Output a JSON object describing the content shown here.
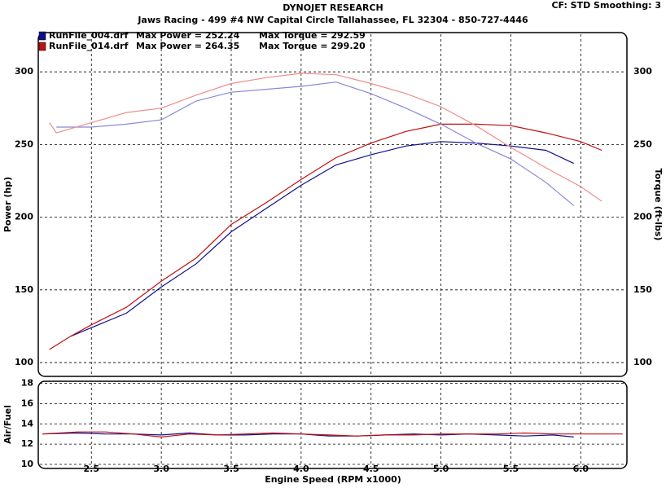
{
  "header": {
    "settings": "CF: STD  Smoothing: 3",
    "title": "DYNOJET RESEARCH",
    "subtitle": "Jaws Racing - 499 #4 NW Capital Circle Tallahassee, FL 32304 - 850-727-4446"
  },
  "chart_data": [
    {
      "type": "line",
      "ylabel": "Power (hp)",
      "y2label": "Torque (ft-lbs)",
      "grid": true,
      "ylim": [
        90.5,
        327
      ],
      "yticks": [
        100,
        150,
        200,
        250,
        300
      ],
      "y2lim": [
        90.5,
        327
      ],
      "y2ticks": [
        100,
        150,
        200,
        250,
        300
      ],
      "legend": [
        {
          "power": "Max Power = 252.24",
          "torque": "Max Torque = 292.59"
        },
        {
          "power": "Max Power = 264.35",
          "torque": "Max Torque = 299.20"
        }
      ],
      "series": [
        {
          "name": "RunFile_004.drf",
          "color": "#10108c",
          "x": [
            2.35,
            2.5,
            2.75,
            3.0,
            3.25,
            3.5,
            3.75,
            4.0,
            4.25,
            4.5,
            4.75,
            5.0,
            5.25,
            5.5,
            5.75,
            5.95
          ],
          "values": [
            118,
            124,
            134,
            152,
            168,
            190,
            206,
            222,
            236,
            243,
            249,
            252,
            251,
            249,
            246,
            237
          ]
        },
        {
          "name": "RunFile_014.drf",
          "color": "#c01010",
          "x": [
            2.2,
            2.35,
            2.5,
            2.75,
            3.0,
            3.25,
            3.5,
            3.75,
            4.0,
            4.25,
            4.5,
            4.75,
            5.0,
            5.25,
            5.5,
            5.75,
            6.0,
            6.15
          ],
          "values": [
            109,
            118,
            126,
            138,
            156,
            172,
            195,
            210,
            226,
            241,
            251,
            259,
            264,
            264,
            263,
            258,
            252,
            246
          ]
        },
        {
          "name": "RunFile_004.drf",
          "color": "#8888d8",
          "axis": "y2",
          "x": [
            2.25,
            2.5,
            2.75,
            3.0,
            3.25,
            3.5,
            3.75,
            4.0,
            4.25,
            4.5,
            4.75,
            5.0,
            5.25,
            5.5,
            5.75,
            5.95
          ],
          "values": [
            262,
            262,
            264,
            267,
            280,
            286,
            288,
            290,
            293,
            285,
            275,
            264,
            251,
            240,
            224,
            208
          ]
        },
        {
          "name": "RunFile_014.drf",
          "color": "#f08c8c",
          "axis": "y2",
          "x": [
            2.2,
            2.25,
            2.5,
            2.75,
            3.0,
            3.25,
            3.5,
            3.75,
            4.0,
            4.25,
            4.5,
            4.75,
            5.0,
            5.25,
            5.5,
            5.75,
            6.0,
            6.15
          ],
          "values": [
            265,
            258,
            265,
            272,
            275,
            284,
            292,
            296,
            299,
            298,
            292,
            285,
            276,
            263,
            248,
            234,
            221,
            211
          ]
        }
      ]
    },
    {
      "type": "line",
      "ylabel": "Air/Fuel",
      "xlabel": "Engine Speed (RPM x1000)",
      "grid": true,
      "xlim": [
        2.12,
        6.33
      ],
      "xticks": [
        2.5,
        {
          "value": 3,
          "label": "3.0"
        },
        3.5,
        {
          "value": 4,
          "label": "4.0"
        },
        4.5,
        {
          "value": 5,
          "label": "5.0"
        },
        5.5,
        {
          "value": 6,
          "label": "6.0"
        }
      ],
      "ylim": [
        9.6,
        18.2
      ],
      "yticks": [
        10,
        12,
        14,
        16,
        18
      ],
      "series": [
        {
          "name": "RunFile_004.drf",
          "color": "#10108c",
          "x": [
            2.15,
            2.4,
            2.6,
            2.8,
            3.0,
            3.2,
            3.4,
            3.6,
            3.8,
            4.0,
            4.2,
            4.4,
            4.6,
            4.8,
            5.0,
            5.2,
            5.4,
            5.6,
            5.8,
            5.95
          ],
          "values": [
            13.0,
            13.1,
            13.0,
            13.0,
            12.9,
            13.1,
            12.9,
            12.9,
            13.0,
            13.0,
            12.8,
            12.8,
            12.9,
            13.0,
            12.9,
            13.0,
            12.9,
            12.8,
            12.9,
            12.7
          ]
        },
        {
          "name": "RunFile_014.drf",
          "color": "#c01010",
          "x": [
            2.15,
            2.4,
            2.6,
            2.8,
            3.0,
            3.2,
            3.4,
            3.6,
            3.8,
            4.0,
            4.2,
            4.4,
            4.6,
            4.8,
            5.0,
            5.2,
            5.4,
            5.6,
            5.8,
            6.0,
            6.1,
            6.3
          ],
          "values": [
            13.0,
            13.2,
            13.2,
            13.0,
            12.7,
            13.0,
            12.9,
            13.0,
            13.1,
            13.0,
            12.9,
            12.8,
            12.9,
            12.9,
            13.0,
            13.0,
            13.0,
            13.1,
            13.0,
            13.0,
            13.0,
            13.0
          ]
        }
      ]
    }
  ]
}
